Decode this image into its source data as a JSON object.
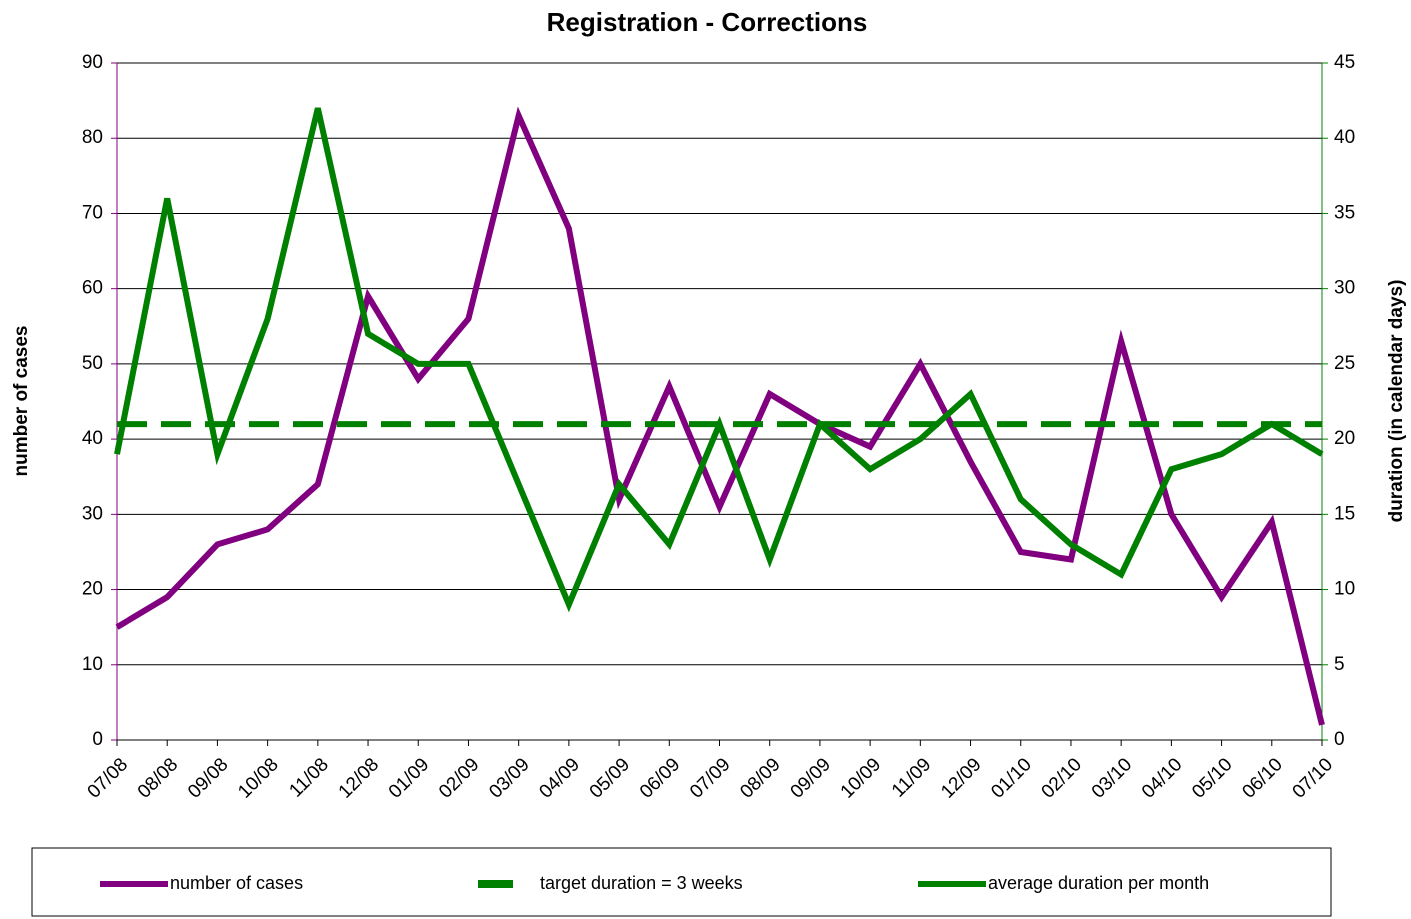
{
  "chart_data": {
    "type": "line",
    "title": "Registration - Corrections",
    "y_label": "number of cases",
    "y2_label": "duration (in calendar days)",
    "categories": [
      "07/08",
      "08/08",
      "09/08",
      "10/08",
      "11/08",
      "12/08",
      "01/09",
      "02/09",
      "03/09",
      "04/09",
      "05/09",
      "06/09",
      "07/09",
      "08/09",
      "09/09",
      "10/09",
      "11/09",
      "12/09",
      "01/10",
      "02/10",
      "03/10",
      "04/10",
      "05/10",
      "06/10",
      "07/10"
    ],
    "series": [
      {
        "name": "number of cases",
        "color": "#800080",
        "axis": "y",
        "style": "solid",
        "values": [
          15,
          19,
          26,
          28,
          34,
          59,
          48,
          56,
          83,
          68,
          32,
          47,
          31,
          46,
          42,
          39,
          50,
          37,
          25,
          24,
          53,
          30,
          19,
          29,
          2
        ]
      },
      {
        "name": "target duration = 3 weeks",
        "color": "#008000",
        "axis": "y2",
        "style": "dashed",
        "values": [
          21,
          21,
          21,
          21,
          21,
          21,
          21,
          21,
          21,
          21,
          21,
          21,
          21,
          21,
          21,
          21,
          21,
          21,
          21,
          21,
          21,
          21,
          21,
          21,
          21
        ]
      },
      {
        "name": "average duration per month",
        "color": "#008000",
        "axis": "y2",
        "style": "solid",
        "values": [
          19,
          36,
          19,
          28,
          42,
          27,
          25,
          25,
          17,
          9,
          17,
          13,
          21,
          12,
          21,
          18,
          20,
          23,
          16,
          13,
          11,
          18,
          19,
          21,
          19
        ]
      }
    ],
    "ylim": [
      0,
      90
    ],
    "yticks": [
      0,
      10,
      20,
      30,
      40,
      50,
      60,
      70,
      80,
      90
    ],
    "y2lim": [
      0,
      45
    ],
    "y2ticks": [
      0,
      5,
      10,
      15,
      20,
      25,
      30,
      35,
      40,
      45
    ],
    "grid": true,
    "legend": "bottom"
  }
}
